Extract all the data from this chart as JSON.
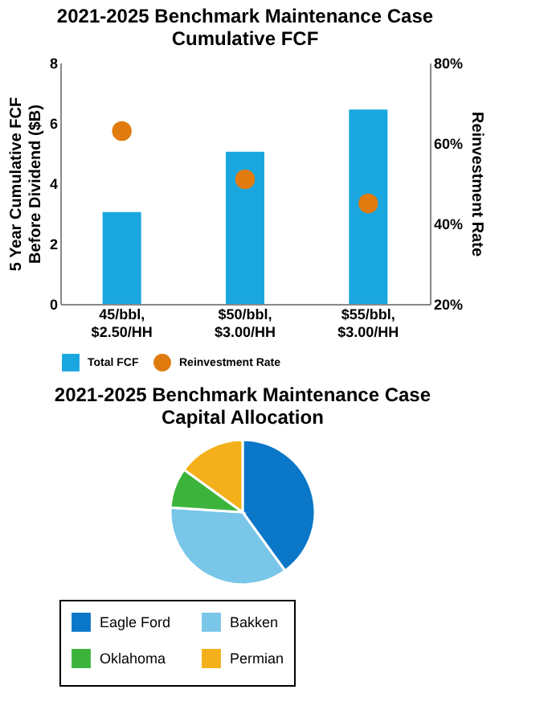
{
  "chart_data": [
    {
      "type": "bar",
      "title": [
        "2021-2025 Benchmark Maintenance Case",
        "Cumulative FCF"
      ],
      "ylabel": "5 Year Cumulative FCF Before Dividend ($B)",
      "y2label": "Reinvestment Rate",
      "categories": [
        "45/bbl, $2.50/HH",
        "$50/bbl, $3.00/HH",
        "$55/bbl, $3.00/HH"
      ],
      "series": [
        {
          "name": "Total FCF",
          "type": "bar",
          "color": "#1aa7e0",
          "values": [
            3.05,
            5.05,
            6.45
          ]
        },
        {
          "name": "Reinvestment Rate",
          "type": "scatter",
          "axis": "y2",
          "color": "#e07b10",
          "values": [
            63,
            51,
            45
          ]
        }
      ],
      "ylim": [
        0,
        8
      ],
      "yticks": [
        0,
        2,
        4,
        6,
        8
      ],
      "y2lim": [
        20,
        80
      ],
      "y2ticks": [
        {
          "value": 20,
          "label": "20%"
        },
        {
          "value": 40,
          "label": "40%"
        },
        {
          "value": 60,
          "label": "60%"
        },
        {
          "value": 80,
          "label": "80%"
        }
      ],
      "grid": false,
      "legend": "bottom",
      "marker": "circle"
    },
    {
      "type": "pie",
      "title": [
        "2021-2025 Benchmark Maintenance Case",
        "Capital Allocation"
      ],
      "categories": [
        "Eagle Ford",
        "Bakken",
        "Oklahoma",
        "Permian"
      ],
      "values": [
        40,
        36,
        9,
        15
      ],
      "colors": [
        "#0a77c8",
        "#79c6e8",
        "#3cb43c",
        "#f4b01a"
      ],
      "legend": "bottom"
    }
  ]
}
